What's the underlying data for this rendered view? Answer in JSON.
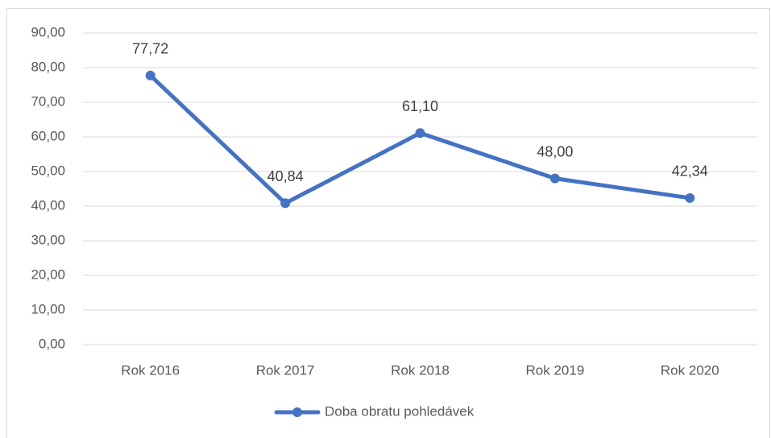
{
  "chart_data": {
    "type": "line",
    "categories": [
      "Rok 2016",
      "Rok 2017",
      "Rok 2018",
      "Rok 2019",
      "Rok 2020"
    ],
    "series": [
      {
        "name": "Doba obratu pohledávek",
        "color": "#4472c4",
        "values": [
          77.72,
          40.84,
          61.1,
          48.0,
          42.34
        ],
        "value_labels": [
          "77,72",
          "40,84",
          "61,10",
          "48,00",
          "42,34"
        ]
      }
    ],
    "ylim": [
      0,
      90
    ],
    "yticks": [
      {
        "value": 0,
        "label": "0,00"
      },
      {
        "value": 10,
        "label": "10,00"
      },
      {
        "value": 20,
        "label": "20,00"
      },
      {
        "value": 30,
        "label": "30,00"
      },
      {
        "value": 40,
        "label": "40,00"
      },
      {
        "value": 50,
        "label": "50,00"
      },
      {
        "value": 60,
        "label": "60,00"
      },
      {
        "value": 70,
        "label": "70,00"
      },
      {
        "value": 80,
        "label": "80,00"
      },
      {
        "value": 90,
        "label": "90,00"
      }
    ],
    "grid": true,
    "legend": "bottom"
  }
}
